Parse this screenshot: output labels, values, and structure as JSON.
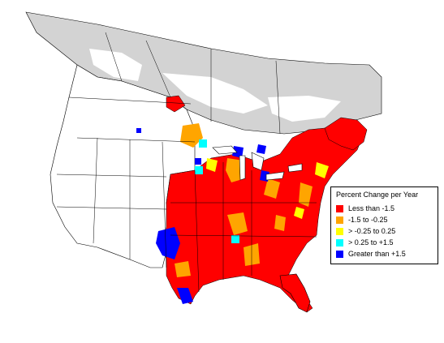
{
  "map": {
    "region": "North America (United States and southern Canada)",
    "colors": {
      "outside_range": "#d3d3d3",
      "no_data": "#ffffff",
      "borders": "#000000"
    }
  },
  "legend": {
    "title": "Percent Change per Year",
    "items": [
      {
        "label": "Less than -1.5",
        "color": "#ff0000"
      },
      {
        "label": "-1.5 to -0.25",
        "color": "#ffa500"
      },
      {
        "label": "> -0.25 to 0.25",
        "color": "#ffff00"
      },
      {
        "label": "> 0.25 to +1.5",
        "color": "#00ffff"
      },
      {
        "label": "Greater than +1.5",
        "color": "#0000ff"
      }
    ]
  }
}
